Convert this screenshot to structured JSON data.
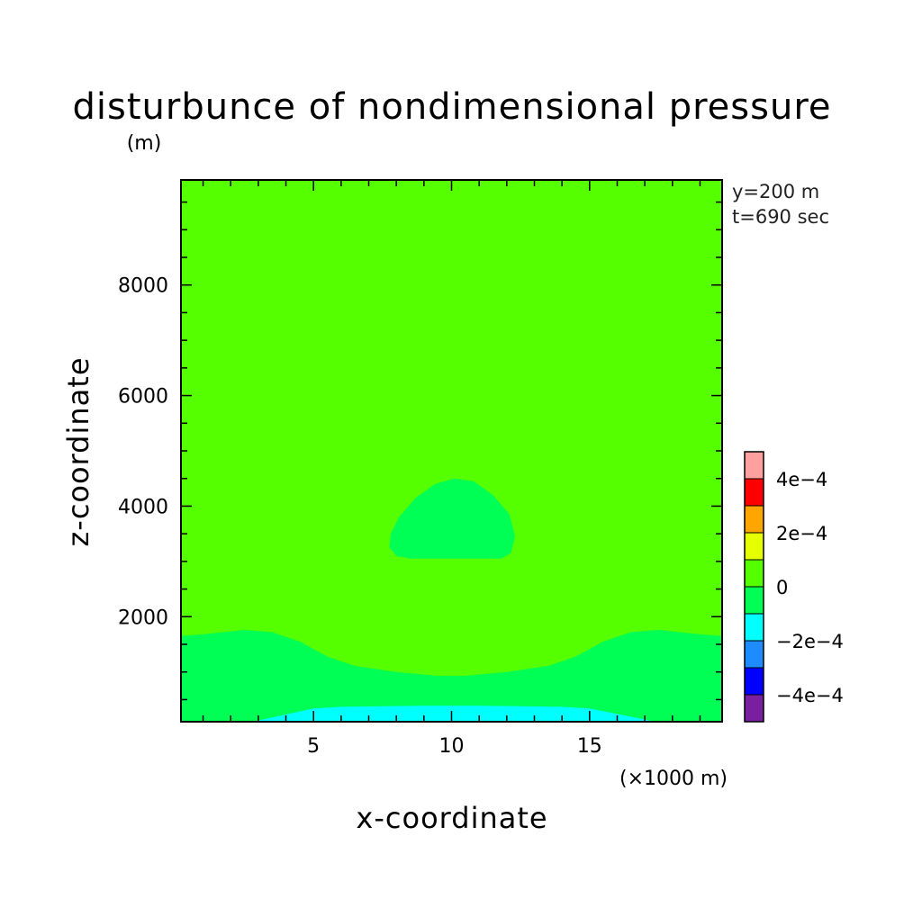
{
  "chart_data": {
    "type": "heatmap",
    "title": "disturbunce of nondimensional pressure",
    "y_units": "(m)",
    "xlabel": "x-coordinate",
    "ylabel": "z-coordinate",
    "x_units": "(×1000 m)",
    "xlim": [
      0.2,
      19.8
    ],
    "ylim": [
      100,
      9900
    ],
    "x_ticks": [
      {
        "value": 5,
        "label": "5"
      },
      {
        "value": 10,
        "label": "10"
      },
      {
        "value": 15,
        "label": "15"
      }
    ],
    "y_ticks": [
      {
        "value": 2000,
        "label": "2000"
      },
      {
        "value": 4000,
        "label": "4000"
      },
      {
        "value": 6000,
        "label": "6000"
      },
      {
        "value": 8000,
        "label": "8000"
      }
    ],
    "info_lines": [
      "y=200 m",
      "t=690 sec"
    ],
    "colorbar": {
      "levels": [
        -0.0005,
        -0.0004,
        -0.0003,
        -0.0002,
        -0.0001,
        0,
        0.0001,
        0.0002,
        0.0003,
        0.0004,
        0.0005
      ],
      "colors": [
        "#7a1fa0",
        "#0000ff",
        "#1e8cff",
        "#00ffff",
        "#00ff55",
        "#55ff00",
        "#e6ff00",
        "#ffa500",
        "#ff0000",
        "#ffa0a0"
      ],
      "labels": [
        {
          "value": 0.0004,
          "label": "4e−4"
        },
        {
          "value": 0.0002,
          "label": "2e−4"
        },
        {
          "value": 0,
          "label": "0"
        },
        {
          "value": -0.0002,
          "label": "−2e−4"
        },
        {
          "value": -0.0004,
          "label": "−4e−4"
        }
      ]
    },
    "background_level": [
      0,
      0.0001
    ],
    "regions": [
      {
        "name": "lower-negative-band",
        "level": [
          -0.0001,
          0
        ],
        "boundary": [
          [
            0.2,
            100
          ],
          [
            0.2,
            1650
          ],
          [
            1,
            1680
          ],
          [
            2.5,
            1760
          ],
          [
            3.5,
            1720
          ],
          [
            4.5,
            1550
          ],
          [
            5.5,
            1280
          ],
          [
            6.5,
            1110
          ],
          [
            8,
            1000
          ],
          [
            9.5,
            930
          ],
          [
            10.5,
            930
          ],
          [
            12,
            1000
          ],
          [
            13.5,
            1110
          ],
          [
            14.5,
            1280
          ],
          [
            15.5,
            1550
          ],
          [
            16.5,
            1720
          ],
          [
            17.5,
            1760
          ],
          [
            19,
            1680
          ],
          [
            19.8,
            1650
          ],
          [
            19.8,
            100
          ]
        ]
      },
      {
        "name": "bottom-band",
        "level": [
          -0.0002,
          -0.0001
        ],
        "boundary": [
          [
            2.8,
            100
          ],
          [
            5,
            340
          ],
          [
            6,
            370
          ],
          [
            9,
            390
          ],
          [
            11,
            390
          ],
          [
            14,
            370
          ],
          [
            15,
            340
          ],
          [
            17.4,
            100
          ]
        ]
      },
      {
        "name": "mid-bubble",
        "level": [
          -0.0001,
          0
        ],
        "boundary": [
          [
            8,
            3100
          ],
          [
            7.75,
            3250
          ],
          [
            7.8,
            3500
          ],
          [
            8.1,
            3800
          ],
          [
            8.7,
            4150
          ],
          [
            9.4,
            4400
          ],
          [
            10.1,
            4500
          ],
          [
            10.8,
            4450
          ],
          [
            11.5,
            4200
          ],
          [
            12.1,
            3850
          ],
          [
            12.3,
            3450
          ],
          [
            12.15,
            3150
          ],
          [
            11.8,
            3050
          ],
          [
            8.5,
            3050
          ]
        ]
      }
    ]
  }
}
